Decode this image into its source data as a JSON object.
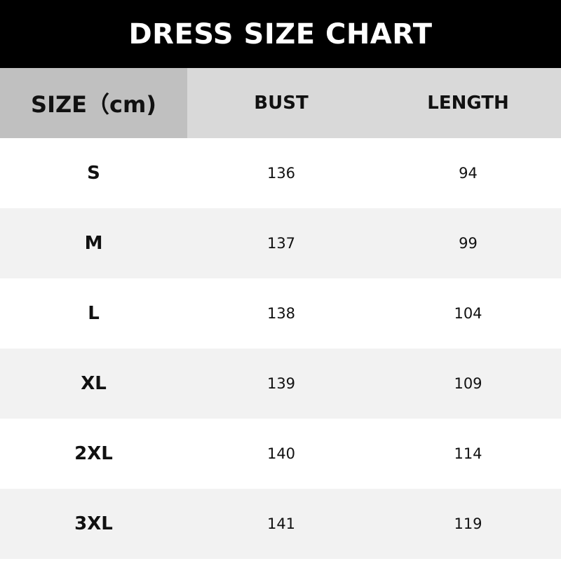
{
  "title": "DRESS SIZE CHART",
  "headers": [
    "SIZE（cm)",
    "BUST",
    "LENGTH"
  ],
  "rows": [
    [
      "S",
      "136",
      "94"
    ],
    [
      "M",
      "137",
      "99"
    ],
    [
      "L",
      "138",
      "104"
    ],
    [
      "XL",
      "139",
      "109"
    ],
    [
      "2XL",
      "140",
      "114"
    ],
    [
      "3XL",
      "141",
      "119"
    ]
  ],
  "colors": {
    "title_bg": "#000000",
    "header_first": "#c0c0c0",
    "header_bg": "#d9d9d9",
    "alt_row": "#f2f2f2"
  }
}
